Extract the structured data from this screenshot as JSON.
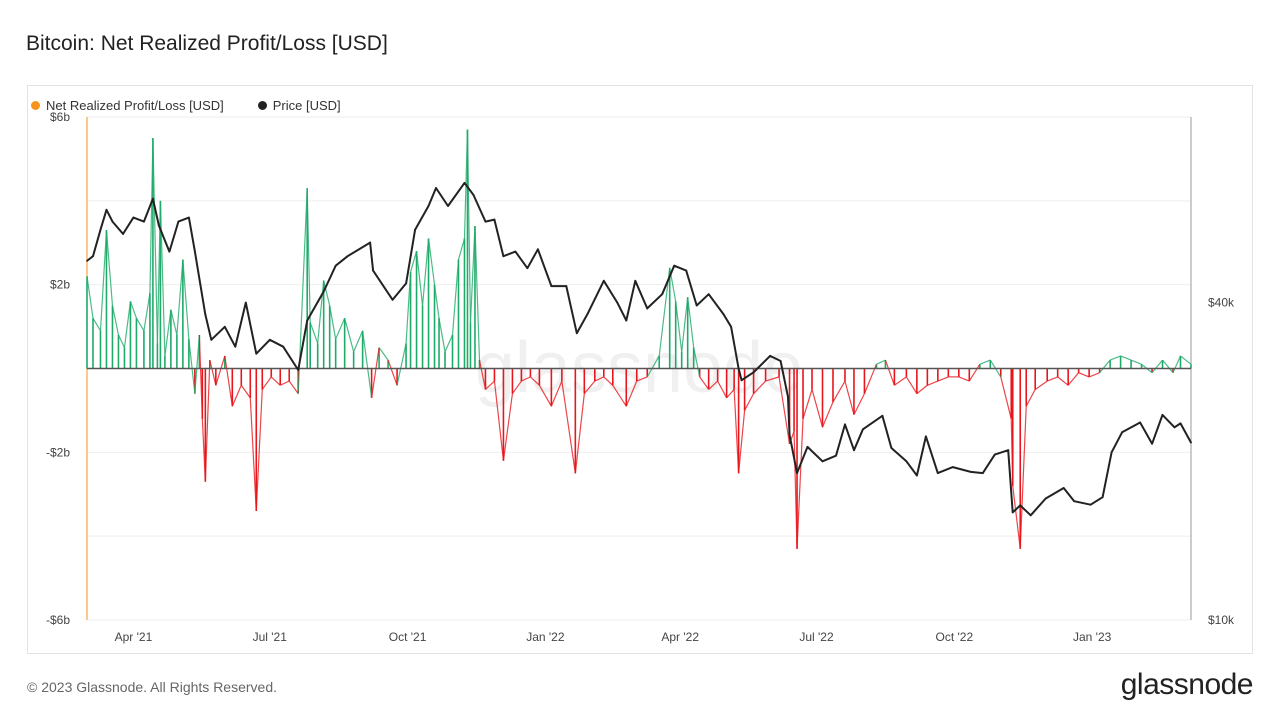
{
  "title": "Bitcoin: Net Realized Profit/Loss [USD]",
  "footer": "© 2023 Glassnode. All Rights Reserved.",
  "brand": "glassnode",
  "watermark": "glassnode",
  "colors": {
    "npl_legend": "#f7931a",
    "price": "#222222",
    "profit": "#1faa6a",
    "loss": "#e8161c",
    "zero_line": "#555555",
    "grid": "#eeeeee"
  },
  "legend": [
    {
      "label": "Net Realized Profit/Loss [USD]",
      "color": "#f7931a"
    },
    {
      "label": "Price [USD]",
      "color": "#222222"
    }
  ],
  "chart_data": {
    "type": "line",
    "x_ticks": [
      "Apr '21",
      "Jul '21",
      "Oct '21",
      "Jan '22",
      "Apr '22",
      "Jul '22",
      "Oct '22",
      "Jan '23"
    ],
    "x_tick_dates": [
      "2021-04-01",
      "2021-07-01",
      "2021-10-01",
      "2022-01-01",
      "2022-04-01",
      "2022-07-01",
      "2022-10-01",
      "2023-01-01"
    ],
    "x_range": [
      "2021-03-01",
      "2023-03-08"
    ],
    "y_left": {
      "ticks": [
        {
          "label": "$6b",
          "value": 6
        },
        {
          "label": "$2b",
          "value": 2
        },
        {
          "label": "-$2b",
          "value": -2
        },
        {
          "label": "-$6b",
          "value": -6
        }
      ],
      "range": [
        -6,
        6
      ],
      "unit": "billion USD"
    },
    "y_right": {
      "scale": "log",
      "ticks": [
        {
          "label": "$40k",
          "value": 40000
        },
        {
          "label": "$10k",
          "value": 10000
        }
      ],
      "range": [
        10000,
        90000
      ]
    },
    "grid": true,
    "legend_position": "top-left",
    "series": [
      {
        "name": "Net Realized Profit/Loss [USD]",
        "axis": "left",
        "points": [
          [
            "2021-03-01",
            2.2
          ],
          [
            "2021-03-05",
            1.2
          ],
          [
            "2021-03-10",
            0.9
          ],
          [
            "2021-03-14",
            3.3
          ],
          [
            "2021-03-18",
            1.5
          ],
          [
            "2021-03-22",
            0.8
          ],
          [
            "2021-03-26",
            0.5
          ],
          [
            "2021-03-30",
            1.6
          ],
          [
            "2021-04-03",
            1.2
          ],
          [
            "2021-04-08",
            0.9
          ],
          [
            "2021-04-12",
            1.8
          ],
          [
            "2021-04-14",
            5.5
          ],
          [
            "2021-04-17",
            0.6
          ],
          [
            "2021-04-19",
            4.0
          ],
          [
            "2021-04-22",
            0.3
          ],
          [
            "2021-04-26",
            1.4
          ],
          [
            "2021-04-30",
            0.8
          ],
          [
            "2021-05-04",
            2.6
          ],
          [
            "2021-05-08",
            0.7
          ],
          [
            "2021-05-12",
            -0.6
          ],
          [
            "2021-05-15",
            0.8
          ],
          [
            "2021-05-17",
            -1.2
          ],
          [
            "2021-05-19",
            -2.7
          ],
          [
            "2021-05-22",
            0.2
          ],
          [
            "2021-05-26",
            -0.4
          ],
          [
            "2021-06-01",
            0.3
          ],
          [
            "2021-06-06",
            -0.9
          ],
          [
            "2021-06-12",
            -0.4
          ],
          [
            "2021-06-18",
            -0.7
          ],
          [
            "2021-06-22",
            -3.4
          ],
          [
            "2021-06-26",
            -0.5
          ],
          [
            "2021-07-02",
            -0.2
          ],
          [
            "2021-07-08",
            -0.4
          ],
          [
            "2021-07-14",
            -0.3
          ],
          [
            "2021-07-20",
            -0.6
          ],
          [
            "2021-07-26",
            4.3
          ],
          [
            "2021-07-28",
            1.1
          ],
          [
            "2021-08-02",
            0.6
          ],
          [
            "2021-08-06",
            2.1
          ],
          [
            "2021-08-10",
            1.5
          ],
          [
            "2021-08-14",
            0.7
          ],
          [
            "2021-08-20",
            1.2
          ],
          [
            "2021-08-26",
            0.4
          ],
          [
            "2021-09-01",
            0.9
          ],
          [
            "2021-09-07",
            -0.7
          ],
          [
            "2021-09-12",
            0.5
          ],
          [
            "2021-09-18",
            0.2
          ],
          [
            "2021-09-24",
            -0.4
          ],
          [
            "2021-09-30",
            0.6
          ],
          [
            "2021-10-03",
            2.3
          ],
          [
            "2021-10-07",
            2.8
          ],
          [
            "2021-10-11",
            1.5
          ],
          [
            "2021-10-15",
            3.1
          ],
          [
            "2021-10-19",
            2.0
          ],
          [
            "2021-10-22",
            1.2
          ],
          [
            "2021-10-26",
            0.4
          ],
          [
            "2021-10-31",
            0.8
          ],
          [
            "2021-11-04",
            2.6
          ],
          [
            "2021-11-08",
            3.1
          ],
          [
            "2021-11-10",
            5.7
          ],
          [
            "2021-11-12",
            1.1
          ],
          [
            "2021-11-15",
            3.4
          ],
          [
            "2021-11-18",
            0.2
          ],
          [
            "2021-11-22",
            -0.5
          ],
          [
            "2021-11-28",
            -0.3
          ],
          [
            "2021-12-04",
            -2.2
          ],
          [
            "2021-12-10",
            -0.6
          ],
          [
            "2021-12-16",
            -0.3
          ],
          [
            "2021-12-22",
            -0.2
          ],
          [
            "2021-12-28",
            -0.4
          ],
          [
            "2022-01-05",
            -0.9
          ],
          [
            "2022-01-12",
            -0.3
          ],
          [
            "2022-01-21",
            -2.5
          ],
          [
            "2022-01-27",
            -0.6
          ],
          [
            "2022-02-03",
            -0.3
          ],
          [
            "2022-02-09",
            -0.2
          ],
          [
            "2022-02-15",
            -0.4
          ],
          [
            "2022-02-24",
            -0.9
          ],
          [
            "2022-03-03",
            -0.3
          ],
          [
            "2022-03-10",
            -0.2
          ],
          [
            "2022-03-18",
            0.3
          ],
          [
            "2022-03-25",
            2.4
          ],
          [
            "2022-03-29",
            1.6
          ],
          [
            "2022-04-02",
            0.4
          ],
          [
            "2022-04-06",
            1.7
          ],
          [
            "2022-04-10",
            0.5
          ],
          [
            "2022-04-14",
            -0.2
          ],
          [
            "2022-04-20",
            -0.5
          ],
          [
            "2022-04-26",
            -0.3
          ],
          [
            "2022-05-02",
            -0.7
          ],
          [
            "2022-05-07",
            -0.5
          ],
          [
            "2022-05-10",
            -2.5
          ],
          [
            "2022-05-14",
            -1.0
          ],
          [
            "2022-05-20",
            -0.6
          ],
          [
            "2022-05-28",
            -0.3
          ],
          [
            "2022-06-06",
            -0.2
          ],
          [
            "2022-06-13",
            -1.8
          ],
          [
            "2022-06-16",
            -1.5
          ],
          [
            "2022-06-18",
            -4.3
          ],
          [
            "2022-06-22",
            -1.2
          ],
          [
            "2022-06-28",
            -0.5
          ],
          [
            "2022-07-05",
            -1.4
          ],
          [
            "2022-07-12",
            -0.8
          ],
          [
            "2022-07-20",
            -0.3
          ],
          [
            "2022-07-26",
            -1.1
          ],
          [
            "2022-08-02",
            -0.6
          ],
          [
            "2022-08-10",
            0.1
          ],
          [
            "2022-08-16",
            0.2
          ],
          [
            "2022-08-22",
            -0.4
          ],
          [
            "2022-08-30",
            -0.2
          ],
          [
            "2022-09-06",
            -0.6
          ],
          [
            "2022-09-13",
            -0.4
          ],
          [
            "2022-09-20",
            -0.3
          ],
          [
            "2022-09-27",
            -0.2
          ],
          [
            "2022-10-04",
            -0.2
          ],
          [
            "2022-10-11",
            -0.3
          ],
          [
            "2022-10-18",
            0.1
          ],
          [
            "2022-10-25",
            0.2
          ],
          [
            "2022-11-01",
            -0.2
          ],
          [
            "2022-11-08",
            -1.2
          ],
          [
            "2022-11-09",
            -2.8
          ],
          [
            "2022-11-14",
            -4.3
          ],
          [
            "2022-11-18",
            -0.9
          ],
          [
            "2022-11-24",
            -0.5
          ],
          [
            "2022-12-02",
            -0.3
          ],
          [
            "2022-12-09",
            -0.2
          ],
          [
            "2022-12-16",
            -0.4
          ],
          [
            "2022-12-23",
            -0.1
          ],
          [
            "2022-12-30",
            -0.2
          ],
          [
            "2023-01-06",
            -0.1
          ],
          [
            "2023-01-13",
            0.2
          ],
          [
            "2023-01-20",
            0.3
          ],
          [
            "2023-01-27",
            0.2
          ],
          [
            "2023-02-03",
            0.1
          ],
          [
            "2023-02-10",
            -0.1
          ],
          [
            "2023-02-17",
            0.2
          ],
          [
            "2023-02-24",
            -0.1
          ],
          [
            "2023-03-01",
            0.3
          ],
          [
            "2023-03-08",
            0.1
          ]
        ]
      },
      {
        "name": "Price [USD]",
        "axis": "right",
        "points": [
          [
            "2021-03-01",
            48000
          ],
          [
            "2021-03-05",
            49000
          ],
          [
            "2021-03-10",
            55000
          ],
          [
            "2021-03-14",
            60000
          ],
          [
            "2021-03-18",
            57000
          ],
          [
            "2021-03-25",
            54000
          ],
          [
            "2021-04-01",
            58000
          ],
          [
            "2021-04-08",
            57000
          ],
          [
            "2021-04-14",
            63000
          ],
          [
            "2021-04-18",
            56000
          ],
          [
            "2021-04-25",
            50000
          ],
          [
            "2021-05-01",
            57000
          ],
          [
            "2021-05-08",
            58000
          ],
          [
            "2021-05-12",
            50000
          ],
          [
            "2021-05-19",
            38000
          ],
          [
            "2021-05-23",
            34000
          ],
          [
            "2021-06-01",
            36000
          ],
          [
            "2021-06-08",
            33000
          ],
          [
            "2021-06-15",
            40000
          ],
          [
            "2021-06-22",
            32000
          ],
          [
            "2021-07-01",
            34000
          ],
          [
            "2021-07-10",
            33000
          ],
          [
            "2021-07-20",
            29800
          ],
          [
            "2021-07-26",
            37000
          ],
          [
            "2021-08-06",
            42000
          ],
          [
            "2021-08-14",
            47000
          ],
          [
            "2021-08-22",
            49000
          ],
          [
            "2021-09-06",
            52000
          ],
          [
            "2021-09-08",
            46000
          ],
          [
            "2021-09-21",
            40500
          ],
          [
            "2021-09-30",
            43500
          ],
          [
            "2021-10-06",
            55000
          ],
          [
            "2021-10-15",
            61000
          ],
          [
            "2021-10-20",
            66000
          ],
          [
            "2021-10-28",
            61000
          ],
          [
            "2021-11-08",
            67500
          ],
          [
            "2021-11-14",
            64000
          ],
          [
            "2021-11-22",
            57000
          ],
          [
            "2021-11-28",
            57500
          ],
          [
            "2021-12-04",
            49000
          ],
          [
            "2021-12-12",
            50000
          ],
          [
            "2021-12-20",
            46500
          ],
          [
            "2021-12-27",
            50500
          ],
          [
            "2022-01-05",
            43000
          ],
          [
            "2022-01-15",
            43000
          ],
          [
            "2022-01-22",
            35000
          ],
          [
            "2022-01-29",
            38000
          ],
          [
            "2022-02-09",
            44000
          ],
          [
            "2022-02-18",
            40000
          ],
          [
            "2022-02-24",
            37000
          ],
          [
            "2022-03-02",
            44000
          ],
          [
            "2022-03-10",
            39000
          ],
          [
            "2022-03-20",
            41500
          ],
          [
            "2022-03-28",
            47000
          ],
          [
            "2022-04-05",
            46000
          ],
          [
            "2022-04-12",
            39500
          ],
          [
            "2022-04-20",
            41500
          ],
          [
            "2022-04-30",
            38000
          ],
          [
            "2022-05-05",
            36000
          ],
          [
            "2022-05-10",
            30000
          ],
          [
            "2022-05-12",
            28500
          ],
          [
            "2022-05-20",
            29500
          ],
          [
            "2022-05-31",
            31700
          ],
          [
            "2022-06-07",
            31000
          ],
          [
            "2022-06-12",
            26500
          ],
          [
            "2022-06-13",
            22500
          ],
          [
            "2022-06-18",
            19000
          ],
          [
            "2022-06-25",
            21300
          ],
          [
            "2022-07-05",
            20000
          ],
          [
            "2022-07-14",
            20500
          ],
          [
            "2022-07-20",
            23500
          ],
          [
            "2022-07-26",
            21000
          ],
          [
            "2022-08-01",
            23000
          ],
          [
            "2022-08-14",
            24400
          ],
          [
            "2022-08-20",
            21200
          ],
          [
            "2022-08-30",
            20000
          ],
          [
            "2022-09-06",
            18800
          ],
          [
            "2022-09-12",
            22300
          ],
          [
            "2022-09-20",
            19000
          ],
          [
            "2022-09-30",
            19500
          ],
          [
            "2022-10-12",
            19100
          ],
          [
            "2022-10-20",
            19000
          ],
          [
            "2022-10-28",
            20600
          ],
          [
            "2022-11-06",
            21000
          ],
          [
            "2022-11-09",
            16000
          ],
          [
            "2022-11-14",
            16500
          ],
          [
            "2022-11-21",
            15800
          ],
          [
            "2022-12-01",
            17000
          ],
          [
            "2022-12-13",
            17800
          ],
          [
            "2022-12-20",
            16800
          ],
          [
            "2022-12-31",
            16550
          ],
          [
            "2023-01-08",
            17100
          ],
          [
            "2023-01-14",
            20800
          ],
          [
            "2023-01-21",
            22700
          ],
          [
            "2023-02-02",
            23700
          ],
          [
            "2023-02-10",
            21600
          ],
          [
            "2023-02-17",
            24500
          ],
          [
            "2023-02-25",
            23200
          ],
          [
            "2023-03-01",
            23600
          ],
          [
            "2023-03-08",
            21700
          ]
        ]
      }
    ]
  }
}
